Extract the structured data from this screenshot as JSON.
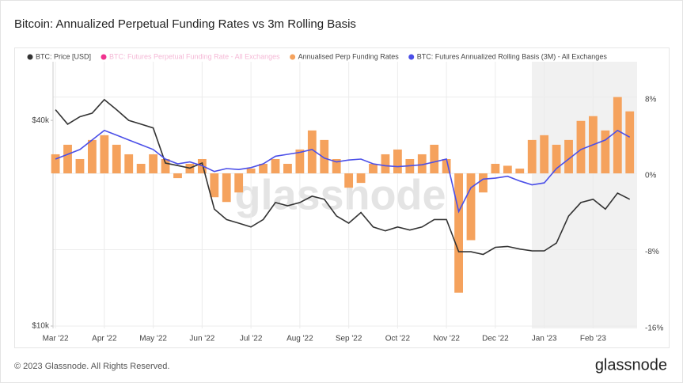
{
  "chart_data": {
    "type": "combo",
    "title": "Bitcoin: Annualized Perpetual Funding Rates vs 3m Rolling Basis",
    "watermark": "glassnode",
    "footer": "© 2023 Glassnode. All Rights Reserved.",
    "brand": "glassnode",
    "grid": true,
    "ylog": true,
    "xlim": [
      -0.05,
      11.9
    ],
    "xticks": [
      {
        "value": 0,
        "label": "Mar '22"
      },
      {
        "value": 1,
        "label": "Apr '22"
      },
      {
        "value": 2,
        "label": "May '22"
      },
      {
        "value": 3,
        "label": "Jun '22"
      },
      {
        "value": 4,
        "label": "Jul '22"
      },
      {
        "value": 5,
        "label": "Aug '22"
      },
      {
        "value": 6,
        "label": "Sep '22"
      },
      {
        "value": 7,
        "label": "Oct '22"
      },
      {
        "value": 8,
        "label": "Nov '22"
      },
      {
        "value": 9,
        "label": "Dec '22"
      },
      {
        "value": 10,
        "label": "Jan '23"
      },
      {
        "value": 11,
        "label": "Feb '23"
      }
    ],
    "ylim": [
      9840,
      59400
    ],
    "yticks": [
      {
        "value": 10000,
        "label": "$10k"
      },
      {
        "value": 40000,
        "label": "$40k"
      }
    ],
    "y2lim": [
      -16.25,
      11.7
    ],
    "y2ticks": [
      {
        "value": 8,
        "label": "8%"
      },
      {
        "value": 0,
        "label": "0%"
      },
      {
        "value": -8,
        "label": "-8%"
      },
      {
        "value": -16,
        "label": "-16%"
      }
    ],
    "x": [
      0,
      0.25,
      0.5,
      0.75,
      1,
      1.25,
      1.5,
      1.75,
      2,
      2.25,
      2.5,
      2.75,
      3,
      3.25,
      3.5,
      3.75,
      4,
      4.25,
      4.5,
      4.75,
      5,
      5.25,
      5.5,
      5.75,
      6,
      6.25,
      6.5,
      6.75,
      7,
      7.25,
      7.5,
      7.75,
      8,
      8.25,
      8.5,
      8.75,
      9,
      9.25,
      9.5,
      9.75,
      10,
      10.25,
      10.5,
      10.75,
      11,
      11.25,
      11.5,
      11.75
    ],
    "series": [
      {
        "name": "BTC: Price [USD]",
        "type": "line",
        "axis": "y",
        "color": "#333333",
        "values": [
          43000,
          39000,
          41000,
          42000,
          46000,
          43000,
          40000,
          39000,
          38000,
          30000,
          29500,
          29000,
          30000,
          22000,
          20500,
          20000,
          19500,
          20500,
          23000,
          22500,
          23000,
          24000,
          23500,
          21000,
          20000,
          21500,
          19500,
          19000,
          19500,
          19100,
          19500,
          20500,
          20500,
          16500,
          16500,
          16200,
          17000,
          17100,
          16800,
          16600,
          16600,
          17500,
          21000,
          23000,
          23500,
          22000,
          24500,
          23500
        ]
      },
      {
        "name": "BTC: Futures Perpetual Funding Rate - All Exchanges",
        "color": "#f0338f",
        "hidden": true
      },
      {
        "name": "Annualised Perp Funding Rates",
        "type": "bar",
        "axis": "y2",
        "color": "#f5a25d",
        "values": [
          2.0,
          3.0,
          1.5,
          3.5,
          4.0,
          3.0,
          2.0,
          1.0,
          2.0,
          1.5,
          -0.5,
          1.0,
          1.5,
          -2.5,
          -3.0,
          -2.0,
          0.5,
          1.0,
          1.5,
          1.0,
          2.5,
          4.5,
          3.5,
          1.5,
          -1.5,
          -1.0,
          1.0,
          2.0,
          2.5,
          1.5,
          2.0,
          3.0,
          1.5,
          -12.5,
          -7.0,
          -2.0,
          1.0,
          0.8,
          0.5,
          3.5,
          4.0,
          3.0,
          3.5,
          5.5,
          6.0,
          4.5,
          8.0,
          6.5
        ]
      },
      {
        "name": "BTC: Futures Annualized Rolling Basis (3M) - All Exchanges",
        "type": "line",
        "axis": "y2",
        "color": "#4b4fe8",
        "values": [
          1.5,
          2.0,
          2.5,
          3.5,
          4.5,
          4.0,
          3.5,
          3.0,
          2.5,
          1.5,
          1.0,
          1.2,
          0.8,
          0.2,
          0.5,
          0.4,
          0.6,
          1.0,
          1.8,
          2.0,
          2.2,
          2.5,
          1.6,
          1.2,
          1.4,
          1.5,
          1.0,
          0.8,
          0.7,
          0.8,
          0.9,
          1.2,
          1.5,
          -4.0,
          -1.5,
          -0.6,
          -0.5,
          -0.3,
          -0.8,
          -1.2,
          -1.0,
          0.5,
          1.5,
          2.5,
          3.0,
          3.5,
          4.5,
          3.8
        ]
      }
    ]
  }
}
